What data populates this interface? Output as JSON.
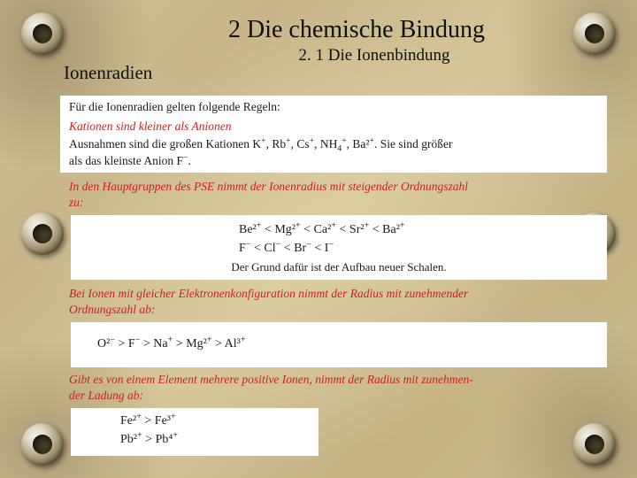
{
  "colors": {
    "parchment_base": "#c9b88f",
    "parchment_light": "#d5c69a",
    "parchment_dark": "#a89b78",
    "ring_highlight": "#f5f2e8",
    "ring_shadow": "#3a3222",
    "box_bg": "#ffffff",
    "text": "#111111",
    "rule_red": "#d02020"
  },
  "typography": {
    "family": "Times New Roman",
    "title_size_pt": 21,
    "subtitle_size_pt": 14,
    "body_size_pt": 10,
    "rule_style": "italic"
  },
  "title": "2 Die chemische Bindung",
  "subtitle": "2. 1 Die Ionenbindung",
  "section_label": "Ionenradien",
  "intro": "Für die Ionenradien gelten folgende Regeln:",
  "rule1": {
    "text": "Kationen sind kleiner als Anionen",
    "exception_a": "Ausnahmen sind die großen Kationen K⁺, Rb⁺, Cs⁺, NH₄⁺, Ba²⁺. Sie sind größer",
    "exception_b": "als das kleinste Anion F⁻."
  },
  "rule2": {
    "text_a": "In den Hauptgruppen des PSE nimmt der Ionenradius mit steigender Ordnungszahl",
    "text_b": "zu:",
    "series_cations": "Be²⁺ < Mg²⁺ < Ca²⁺ < Sr²⁺ < Ba²⁺",
    "series_anions": "F⁻ < Cl⁻ < Br⁻ < I⁻",
    "reason": "Der Grund dafür ist der Aufbau neuer Schalen."
  },
  "rule3": {
    "text_a": "Bei Ionen mit gleicher Elektronenkonfiguration nimmt der Radius mit zunehmender",
    "text_b": "Ordnungszahl ab:",
    "series": "O²⁻ > F⁻ > Na⁺ > Mg²⁺ > Al³⁺"
  },
  "rule4": {
    "text_a": "Gibt es von einem Element mehrere positive Ionen, nimmt der Radius mit zunehmen-",
    "text_b": "der Ladung ab:",
    "series_fe": "Fe²⁺ > Fe³⁺",
    "series_pb": "Pb²⁺ > Pb⁴⁺"
  }
}
